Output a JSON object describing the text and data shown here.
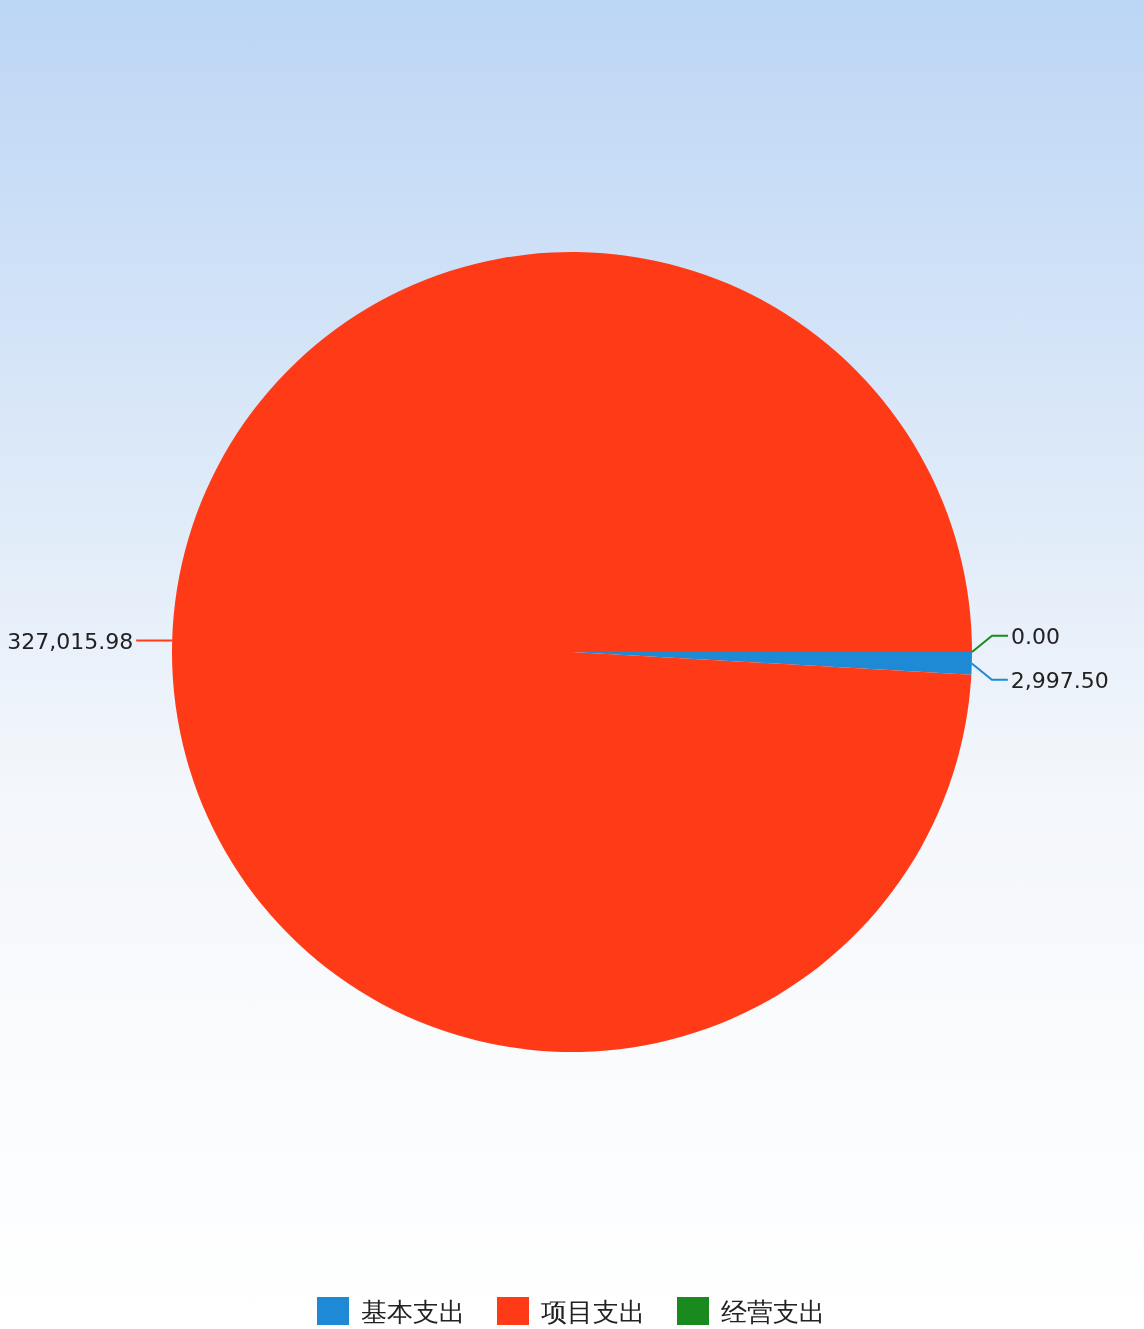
{
  "chart_data": {
    "type": "pie",
    "categories": [
      "基本支出",
      "项目支出",
      "经营支出"
    ],
    "values": [
      2997.5,
      327015.98,
      0.0
    ],
    "value_labels": [
      "2,997.50",
      "327,015.98",
      "0.00"
    ],
    "colors": [
      "#1e8ad6",
      "#ff3a17",
      "#1a8a1f"
    ],
    "legend": "bottom"
  }
}
